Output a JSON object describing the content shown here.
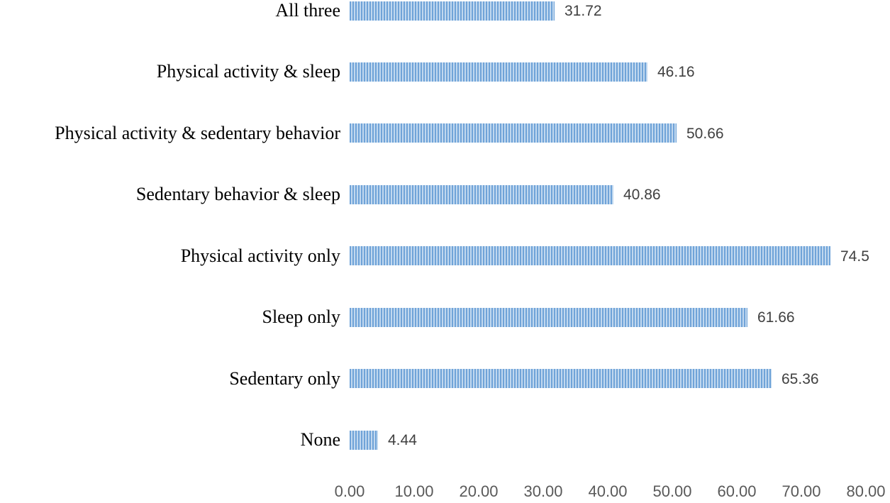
{
  "chart_data": {
    "type": "bar",
    "orientation": "horizontal",
    "title": "",
    "xlabel": "",
    "ylabel": "",
    "grid": false,
    "legend": false,
    "xlim": [
      0,
      80
    ],
    "categories": [
      "All three",
      "Physical activity & sleep",
      "Physical activity & sedentary behavior",
      "Sedentary behavior & sleep",
      "Physical activity only",
      "Sleep only",
      "Sedentary only",
      "None"
    ],
    "values": [
      31.72,
      46.16,
      50.66,
      40.86,
      74.5,
      61.66,
      65.36,
      4.44
    ],
    "value_labels": [
      "31.72",
      "46.16",
      "50.66",
      "40.86",
      "74.5",
      "61.66",
      "65.36",
      "4.44"
    ],
    "x_axis": {
      "tick_values": [
        0,
        10,
        20,
        30,
        40,
        50,
        60,
        70,
        80
      ],
      "tick_labels": [
        "0.00",
        "10.00",
        "20.00",
        "30.00",
        "40.00",
        "50.00",
        "60.00",
        "70.00",
        "80.00"
      ]
    },
    "colors": {
      "bar_stripe_dark": "#6fa3d8",
      "bar_stripe_light": "#c1d8ef",
      "category_text": "#000000",
      "value_text": "#404040",
      "axis_text": "#595959",
      "background": "#ffffff"
    }
  }
}
